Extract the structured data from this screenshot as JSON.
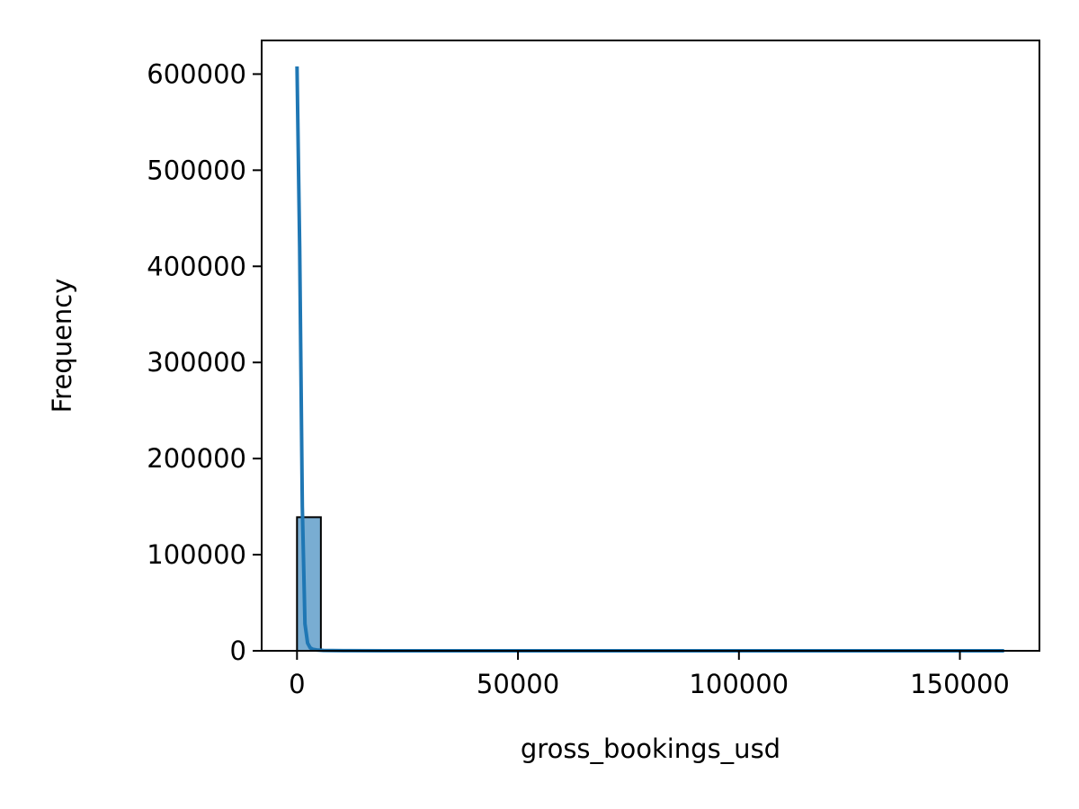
{
  "chart_data": {
    "type": "bar",
    "subtype": "histogram-with-kde",
    "title": "",
    "xlabel": "gross_bookings_usd",
    "ylabel": "Frequency",
    "xlim": [
      -8000,
      168000
    ],
    "ylim": [
      0,
      635000
    ],
    "xticks": [
      0,
      50000,
      100000,
      150000
    ],
    "yticks": [
      0,
      100000,
      200000,
      300000,
      400000,
      500000,
      600000
    ],
    "grid": false,
    "legend": "none",
    "bars": {
      "bin_edges": [
        0,
        5400,
        10800,
        16200,
        21600,
        27000,
        32400,
        37800,
        43200,
        48600,
        54000,
        59400,
        64800,
        70200,
        75600,
        81000,
        86400,
        91800,
        97200,
        102600,
        108000,
        113400,
        118800,
        124200,
        129600,
        135000,
        140400,
        145800,
        151200,
        156600,
        162000
      ],
      "counts": [
        139000,
        300,
        40,
        10,
        5,
        3,
        2,
        1,
        1,
        1,
        0,
        0,
        0,
        0,
        0,
        0,
        0,
        0,
        0,
        0,
        0,
        0,
        0,
        0,
        0,
        0,
        0,
        0,
        0,
        1
      ]
    },
    "kde": {
      "x": [
        0,
        600,
        1200,
        1800,
        2400,
        3000,
        3600,
        4500,
        6000,
        8000,
        12000,
        20000,
        40000,
        80000,
        120000,
        160000
      ],
      "y": [
        608000,
        420000,
        150000,
        28000,
        8000,
        3000,
        1500,
        800,
        400,
        200,
        100,
        50,
        20,
        10,
        5,
        2
      ]
    },
    "colors": {
      "bar_fill": "#1f77b4",
      "bar_opacity": 0.6,
      "bar_edge": "#000000",
      "kde_line": "#1f77b4"
    }
  }
}
